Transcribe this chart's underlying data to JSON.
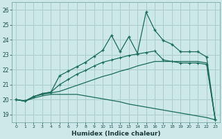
{
  "xlabel": "Humidex (Indice chaleur)",
  "background_color": "#cce8e8",
  "grid_color": "#aacccc",
  "line_color": "#1a6b5a",
  "xlim": [
    -0.5,
    23.5
  ],
  "ylim": [
    18.5,
    26.5
  ],
  "yticks": [
    19,
    20,
    21,
    22,
    23,
    24,
    25,
    26
  ],
  "xticks": [
    0,
    1,
    2,
    3,
    4,
    5,
    6,
    7,
    8,
    9,
    10,
    11,
    12,
    13,
    14,
    15,
    16,
    17,
    18,
    19,
    20,
    21,
    22,
    23
  ],
  "curve1_x": [
    0,
    1,
    2,
    3,
    4,
    5,
    6,
    7,
    8,
    9,
    10,
    11,
    12,
    13,
    14,
    15,
    16,
    17,
    18,
    19,
    20,
    21,
    22,
    23
  ],
  "curve1_y": [
    20.0,
    19.9,
    20.2,
    20.4,
    20.5,
    21.6,
    21.9,
    22.2,
    22.5,
    22.9,
    23.3,
    24.3,
    23.2,
    24.2,
    23.1,
    25.85,
    24.65,
    23.95,
    23.7,
    23.2,
    23.2,
    23.2,
    22.85,
    18.65
  ],
  "curve2_x": [
    0,
    1,
    2,
    3,
    4,
    5,
    6,
    7,
    8,
    9,
    10,
    11,
    12,
    13,
    14,
    15,
    16,
    17,
    18,
    19,
    20,
    21,
    22,
    23
  ],
  "curve2_y": [
    20.0,
    19.9,
    20.2,
    20.4,
    20.5,
    21.0,
    21.35,
    21.7,
    21.95,
    22.25,
    22.5,
    22.65,
    22.8,
    22.95,
    23.05,
    23.15,
    23.25,
    22.65,
    22.55,
    22.45,
    22.45,
    22.45,
    22.35,
    18.65
  ],
  "curve3_x": [
    0,
    1,
    2,
    3,
    4,
    5,
    6,
    7,
    8,
    9,
    10,
    11,
    12,
    13,
    14,
    15,
    16,
    17,
    18,
    19,
    20,
    21,
    22,
    23
  ],
  "curve3_y": [
    20.0,
    19.9,
    20.2,
    20.35,
    20.45,
    20.55,
    20.75,
    20.95,
    21.15,
    21.35,
    21.55,
    21.7,
    21.9,
    22.05,
    22.25,
    22.4,
    22.55,
    22.55,
    22.55,
    22.55,
    22.55,
    22.55,
    22.45,
    18.65
  ],
  "curve4_x": [
    0,
    1,
    2,
    3,
    4,
    5,
    6,
    7,
    8,
    9,
    10,
    11,
    12,
    13,
    14,
    15,
    16,
    17,
    18,
    19,
    20,
    21,
    22,
    23
  ],
  "curve4_y": [
    20.0,
    19.9,
    20.1,
    20.25,
    20.35,
    20.35,
    20.35,
    20.35,
    20.25,
    20.15,
    20.05,
    19.95,
    19.85,
    19.7,
    19.6,
    19.5,
    19.4,
    19.3,
    19.2,
    19.1,
    19.0,
    18.9,
    18.8,
    18.65
  ]
}
